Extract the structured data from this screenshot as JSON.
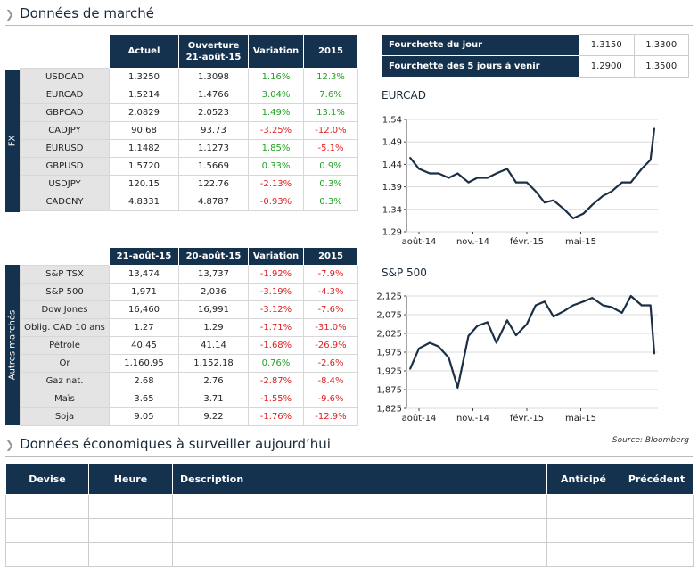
{
  "market": {
    "title": "Données de marché",
    "fx_header": [
      "Actuel",
      "Ouverture 21-août-15",
      "Variation",
      "2015"
    ],
    "fx_side_label": "FX",
    "fx_rows": [
      {
        "name": "USDCAD",
        "actuel": "1.3250",
        "ouverture": "1.3098",
        "variation": "1.16%",
        "ytd": "12.3%"
      },
      {
        "name": "EURCAD",
        "actuel": "1.5214",
        "ouverture": "1.4766",
        "variation": "3.04%",
        "ytd": "7.6%"
      },
      {
        "name": "GBPCAD",
        "actuel": "2.0829",
        "ouverture": "2.0523",
        "variation": "1.49%",
        "ytd": "13.1%"
      },
      {
        "name": "CADJPY",
        "actuel": "90.68",
        "ouverture": "93.73",
        "variation": "-3.25%",
        "ytd": "-12.0%"
      },
      {
        "name": "EURUSD",
        "actuel": "1.1482",
        "ouverture": "1.1273",
        "variation": "1.85%",
        "ytd": "-5.1%"
      },
      {
        "name": "GBPUSD",
        "actuel": "1.5720",
        "ouverture": "1.5669",
        "variation": "0.33%",
        "ytd": "0.9%"
      },
      {
        "name": "USDJPY",
        "actuel": "120.15",
        "ouverture": "122.76",
        "variation": "-2.13%",
        "ytd": "0.3%"
      },
      {
        "name": "CADCNY",
        "actuel": "4.8331",
        "ouverture": "4.8787",
        "variation": "-0.93%",
        "ytd": "0.3%"
      }
    ],
    "other_header": [
      "21-août-15",
      "20-août-15",
      "Variation",
      "2015"
    ],
    "other_side_label": "Autres marchés",
    "other_rows": [
      {
        "name": "S&P TSX",
        "actuel": "13,474",
        "ouverture": "13,737",
        "variation": "-1.92%",
        "ytd": "-7.9%"
      },
      {
        "name": "S&P 500",
        "actuel": "1,971",
        "ouverture": "2,036",
        "variation": "-3.19%",
        "ytd": "-4.3%"
      },
      {
        "name": "Dow Jones",
        "actuel": "16,460",
        "ouverture": "16,991",
        "variation": "-3.12%",
        "ytd": "-7.6%"
      },
      {
        "name": "Oblig. CAD 10 ans",
        "actuel": "1.27",
        "ouverture": "1.29",
        "variation": "-1.71%",
        "ytd": "-31.0%"
      },
      {
        "name": "Pétrole",
        "actuel": "40.45",
        "ouverture": "41.14",
        "variation": "-1.68%",
        "ytd": "-26.9%"
      },
      {
        "name": "Or",
        "actuel": "1,160.95",
        "ouverture": "1,152.18",
        "variation": "0.76%",
        "ytd": "-2.6%"
      },
      {
        "name": "Gaz nat.",
        "actuel": "2.68",
        "ouverture": "2.76",
        "variation": "-2.87%",
        "ytd": "-8.4%"
      },
      {
        "name": "Maïs",
        "actuel": "3.65",
        "ouverture": "3.71",
        "variation": "-1.55%",
        "ytd": "-9.6%"
      },
      {
        "name": "Soja",
        "actuel": "9.05",
        "ouverture": "9.22",
        "variation": "-1.76%",
        "ytd": "-12.9%"
      }
    ]
  },
  "range": {
    "rows": [
      {
        "label": "Fourchette du jour",
        "low": "1.3150",
        "high": "1.3300"
      },
      {
        "label": "Fourchette des 5 jours à venir",
        "low": "1.2900",
        "high": "1.3500"
      }
    ]
  },
  "source": "Source: Bloomberg",
  "economic": {
    "title": "Données économiques à surveiller aujourd’hui",
    "headers": [
      "Devise",
      "Heure",
      "Description",
      "Anticipé",
      "Précédent"
    ],
    "empty_rows": 3
  },
  "colors": {
    "navy": "#14314d",
    "positive": "#23a023",
    "negative": "#e02020",
    "line": "#1b2f45"
  },
  "chart_data": [
    {
      "type": "line",
      "title": "EURCAD",
      "ylim": [
        1.29,
        1.54
      ],
      "yticks": [
        "1.29",
        "1.34",
        "1.39",
        "1.44",
        "1.49",
        "1.54"
      ],
      "xlabels": [
        "août-14",
        "nov.-14",
        "févr.-15",
        "mai-15"
      ],
      "x": [
        "2014-08-01",
        "2014-08-15",
        "2014-09-01",
        "2014-09-15",
        "2014-10-01",
        "2014-10-15",
        "2014-11-01",
        "2014-11-15",
        "2014-12-01",
        "2014-12-15",
        "2015-01-01",
        "2015-01-15",
        "2015-02-01",
        "2015-02-15",
        "2015-03-01",
        "2015-03-15",
        "2015-04-01",
        "2015-04-15",
        "2015-05-01",
        "2015-05-15",
        "2015-06-01",
        "2015-06-15",
        "2015-07-01",
        "2015-07-15",
        "2015-08-01",
        "2015-08-15",
        "2015-08-21"
      ],
      "series": [
        {
          "values": [
            1.455,
            1.43,
            1.42,
            1.42,
            1.41,
            1.42,
            1.4,
            1.41,
            1.41,
            1.42,
            1.43,
            1.4,
            1.4,
            1.38,
            1.355,
            1.36,
            1.34,
            1.32,
            1.33,
            1.35,
            1.37,
            1.38,
            1.4,
            1.4,
            1.43,
            1.45,
            1.52
          ]
        }
      ]
    },
    {
      "type": "line",
      "title": "S&P 500",
      "ylim": [
        1825,
        2125
      ],
      "yticks": [
        "1,825",
        "1,875",
        "1,925",
        "1,975",
        "2,025",
        "2,075",
        "2,125"
      ],
      "xlabels": [
        "août-14",
        "nov.-14",
        "févr.-15",
        "mai-15"
      ],
      "x": [
        "2014-08-01",
        "2014-08-15",
        "2014-09-01",
        "2014-09-15",
        "2014-10-01",
        "2014-10-15",
        "2014-11-01",
        "2014-11-15",
        "2014-12-01",
        "2014-12-15",
        "2015-01-01",
        "2015-01-15",
        "2015-02-01",
        "2015-02-15",
        "2015-03-01",
        "2015-03-15",
        "2015-04-01",
        "2015-04-15",
        "2015-05-01",
        "2015-05-15",
        "2015-06-01",
        "2015-06-15",
        "2015-07-01",
        "2015-07-15",
        "2015-08-01",
        "2015-08-15",
        "2015-08-21"
      ],
      "series": [
        {
          "values": [
            1930,
            1985,
            2000,
            1990,
            1960,
            1880,
            2018,
            2045,
            2055,
            2000,
            2060,
            2020,
            2050,
            2100,
            2110,
            2070,
            2085,
            2100,
            2110,
            2120,
            2100,
            2095,
            2080,
            2125,
            2100,
            2100,
            1971
          ]
        }
      ]
    }
  ]
}
